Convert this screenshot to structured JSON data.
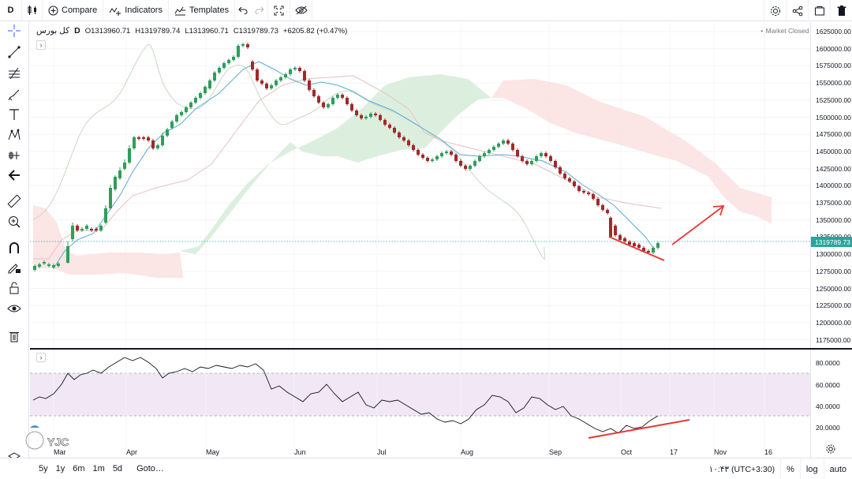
{
  "toolbar": {
    "interval": "D",
    "compare": "Compare",
    "indicators": "Indicators",
    "templates": "Templates"
  },
  "legend": {
    "symbol": "کل بورس",
    "interval": "D",
    "open": "O1313960.71",
    "high": "H1319789.74",
    "low": "L1313960.71",
    "close": "C1319789.73",
    "change": "+6205.82 (+0.47%)",
    "market_status": "Market Closed"
  },
  "price_scale": {
    "labels": [
      "1625000.00",
      "1600000.00",
      "1575000.00",
      "1550000.00",
      "1525000.00",
      "1500000.00",
      "1475000.00",
      "1450000.00",
      "1425000.00",
      "1400000.00",
      "1375000.00",
      "1350000.00",
      "1325000.00",
      "1300000.00",
      "1275000.00",
      "1250000.00",
      "1225000.00",
      "1200000.00",
      "1175000.00"
    ],
    "last_price": "1319789.73"
  },
  "rsi_scale": {
    "labels": [
      "80.0000",
      "60.0000",
      "40.0000",
      "20.0000"
    ]
  },
  "time_axis": {
    "labels": [
      "Mar",
      "Apr",
      "May",
      "Jun",
      "Jul",
      "Aug",
      "Sep",
      "Oct",
      "17",
      "Nov",
      "16"
    ]
  },
  "bottom": {
    "ranges": [
      "5y",
      "1y",
      "6m",
      "1m",
      "5d"
    ],
    "goto": "Goto…",
    "clock": "۱۰:۴۳ (UTC+3:30)",
    "percent": "%",
    "log": "log",
    "auto": "auto"
  },
  "watermark": {
    "text": "YJC"
  },
  "colors": {
    "up": "#26a69a",
    "up_candle": "#2e9e5a",
    "down": "#a3282a",
    "annotation": "#e53935",
    "cloud_green": "#d6ecd9",
    "cloud_red": "#fbe0e0",
    "rsi_band": "#f1e7f5"
  }
}
